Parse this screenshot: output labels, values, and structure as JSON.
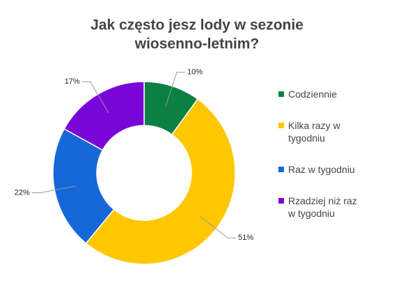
{
  "chart_data": {
    "type": "doughnut",
    "title": [
      "Jak często jesz lody w sezonie",
      "wiosenno-letnim?"
    ],
    "categories": [
      "Codziennie",
      "Kilka razy w tygodniu",
      "Raz w tygodniu",
      "Rzadziej niż raz w tygodniu"
    ],
    "values": [
      10,
      51,
      22,
      17
    ],
    "value_labels": [
      "10%",
      "51%",
      "22%",
      "17%"
    ],
    "colors": [
      "#0b8043",
      "#ffc700",
      "#1667d8",
      "#7a05d8"
    ],
    "legend": "right"
  }
}
